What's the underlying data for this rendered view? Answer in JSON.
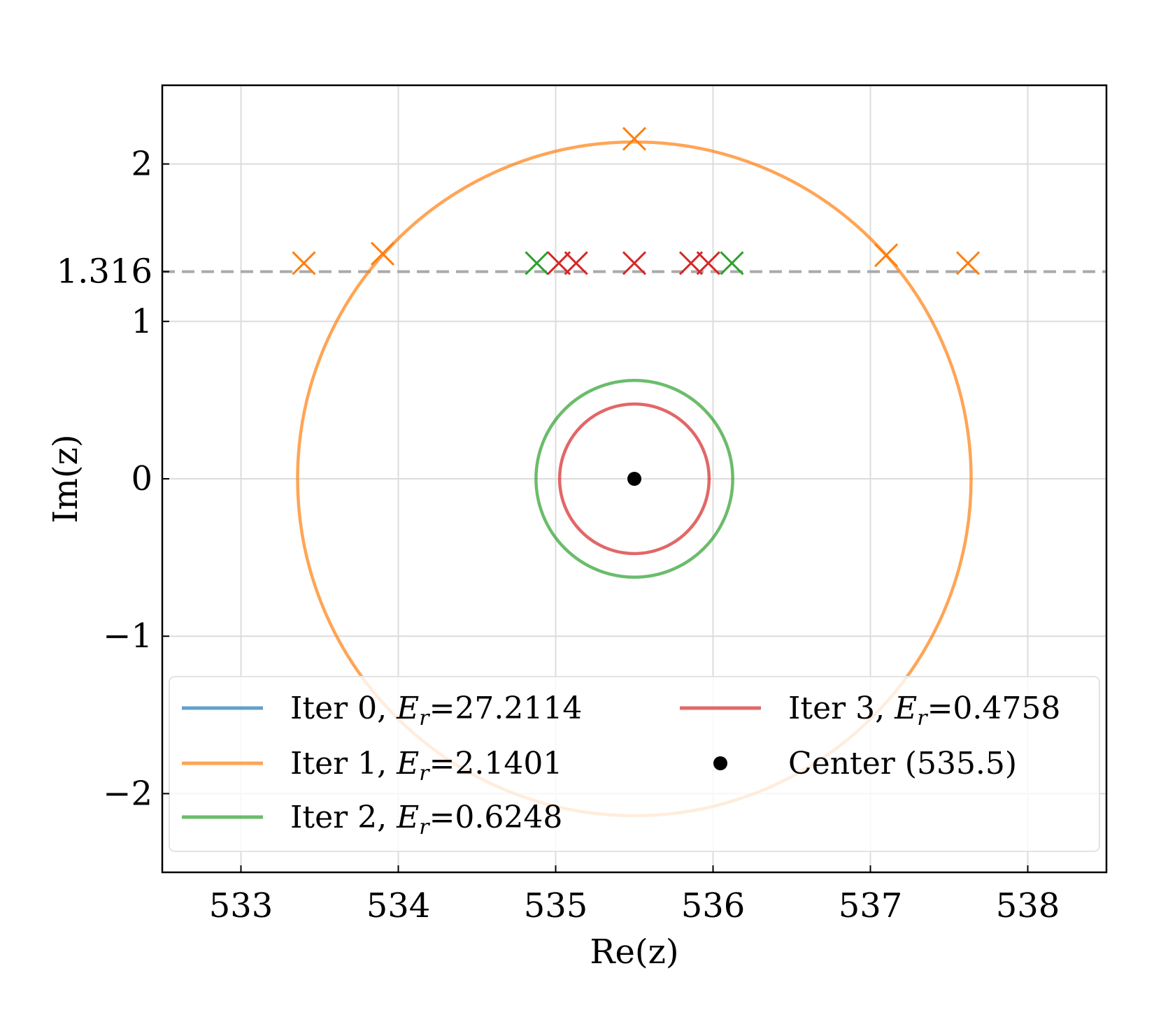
{
  "chart_data": {
    "type": "scatter",
    "title": "",
    "xlabel": "Re(z)",
    "ylabel": "Im(z)",
    "xlim": [
      532.5,
      538.5
    ],
    "ylim": [
      -2.5,
      2.5
    ],
    "xticks": [
      533,
      534,
      535,
      536,
      537,
      538
    ],
    "xtick_labels": [
      "533",
      "534",
      "535",
      "536",
      "537",
      "538"
    ],
    "yticks": [
      -2,
      -1,
      0,
      1,
      1.316,
      2
    ],
    "ytick_labels": [
      "−2",
      "−1",
      "0",
      "1",
      "1.316",
      "2"
    ],
    "grid": true,
    "reference_line": {
      "y": 1.316,
      "style": "dashed",
      "color": "#aaaaaa"
    },
    "center": {
      "label": "Center (535.5)",
      "x": 535.5,
      "y": 0,
      "color": "#000000"
    },
    "series": [
      {
        "name": "Iter 0",
        "error_label": "27.2114",
        "color": "#1f77b4",
        "radius": null,
        "points": []
      },
      {
        "name": "Iter 1",
        "error_label": "2.1401",
        "color": "#ff7f0e",
        "radius": 2.14,
        "points": [
          [
            533.4,
            1.37
          ],
          [
            533.9,
            1.43
          ],
          [
            535.5,
            2.16
          ],
          [
            537.1,
            1.42
          ],
          [
            537.62,
            1.37
          ]
        ]
      },
      {
        "name": "Iter 2",
        "error_label": "0.6248",
        "color": "#2ca02c",
        "radius": 0.625,
        "points": [
          [
            534.88,
            1.37
          ],
          [
            536.12,
            1.37
          ]
        ]
      },
      {
        "name": "Iter 3",
        "error_label": "0.4758",
        "color": "#d62728",
        "radius": 0.475,
        "points": [
          [
            535.02,
            1.37
          ],
          [
            535.13,
            1.37
          ],
          [
            535.5,
            1.37
          ],
          [
            535.86,
            1.37
          ],
          [
            535.97,
            1.37
          ]
        ]
      }
    ],
    "legend": {
      "placement": "lower-center",
      "columns": 2,
      "entries": [
        {
          "series": 0,
          "prefix": "Iter 0, ",
          "symbol": "E",
          "subscript": "r",
          "value": "=27.2114"
        },
        {
          "series": 1,
          "prefix": "Iter 1, ",
          "symbol": "E",
          "subscript": "r",
          "value": "=2.1401"
        },
        {
          "series": 2,
          "prefix": "Iter 2, ",
          "symbol": "E",
          "subscript": "r",
          "value": "=0.6248"
        },
        {
          "series": 3,
          "prefix": "Iter 3, ",
          "symbol": "E",
          "subscript": "r",
          "value": "=0.4758"
        },
        {
          "center": true,
          "text": "Center (535.5)"
        }
      ]
    }
  }
}
